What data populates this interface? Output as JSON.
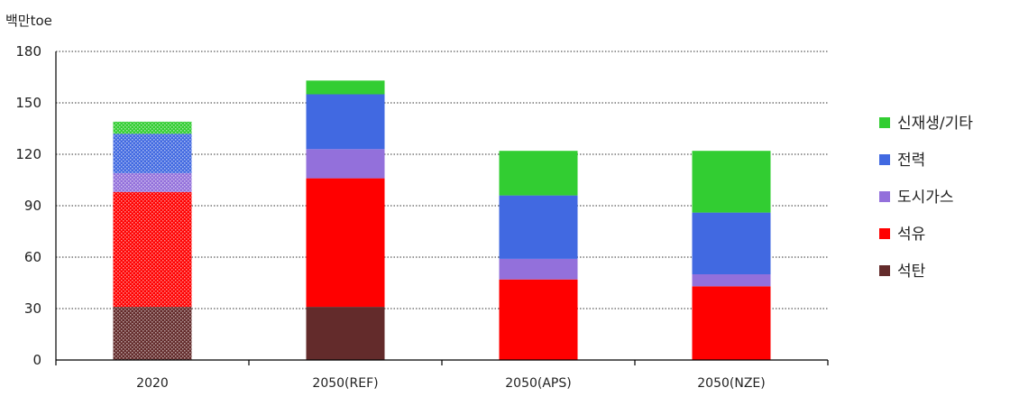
{
  "chart_data": {
    "type": "bar",
    "stacked": true,
    "unit_label": "백만toe",
    "categories": [
      "2020",
      "2050(REF)",
      "2050(APS)",
      "2050(NZE)"
    ],
    "series": [
      {
        "name": "석탄",
        "color": "#632B2B",
        "values": [
          31,
          31,
          0,
          0
        ]
      },
      {
        "name": "석유",
        "color": "#FF0000",
        "values": [
          67,
          75,
          47,
          43
        ]
      },
      {
        "name": "도시가스",
        "color": "#9370DB",
        "values": [
          11,
          17,
          12,
          7
        ]
      },
      {
        "name": "전력",
        "color": "#4169E1",
        "values": [
          23,
          32,
          37,
          36
        ]
      },
      {
        "name": "신재생/기타",
        "color": "#32CD32",
        "values": [
          7,
          8,
          26,
          36
        ]
      }
    ],
    "legend_order": [
      "신재생/기타",
      "전력",
      "도시가스",
      "석유",
      "석탄"
    ],
    "patterned_categories": [
      "2020"
    ],
    "ylim": [
      0,
      180
    ],
    "yticks": [
      0,
      30,
      60,
      90,
      120,
      150,
      180
    ],
    "grid": true,
    "legend_position": "right"
  }
}
